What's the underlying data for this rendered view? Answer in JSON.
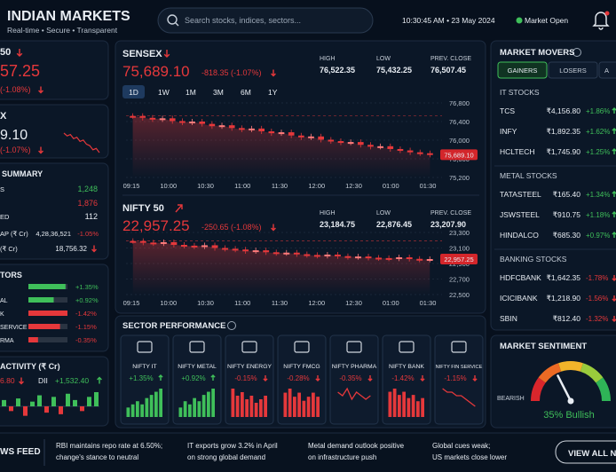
{
  "header": {
    "title": "INDIAN MARKETS",
    "tagline": "Real-time • Secure • Transparent",
    "search_placeholder": "Search stocks, indices, sectors...",
    "datetime": "10:30:45 AM • 23 May 2024",
    "status": "Market Open"
  },
  "left": {
    "card1": {
      "name": "50",
      "value": "57.25",
      "change": "(-1.08%)"
    },
    "card2": {
      "name": "X",
      "value": "9.10",
      "change": "(-1.07%)",
      "spark": [
        9,
        8,
        8.5,
        7,
        7.5,
        6,
        6.5,
        5,
        4.5,
        3,
        3.5,
        2
      ]
    },
    "summary": {
      "title": "SUMMARY",
      "rows": [
        {
          "label": "S",
          "value": "1,248"
        },
        {
          "value": "1,876"
        },
        {
          "label": "ED",
          "value": "112"
        },
        {
          "label": "AP (₹ Cr)",
          "value": "4,28,36,521",
          "change": "-1.05%"
        },
        {
          "label": "(₹ Cr)",
          "value": "18,756.32"
        }
      ]
    },
    "sectors": {
      "title": "TORS",
      "rows": [
        {
          "change": 1.35,
          "change_label": "+1.35%"
        },
        {
          "label": "AL",
          "change": 0.92,
          "change_label": "+0.92%"
        },
        {
          "label": "K",
          "change": -1.42,
          "change_label": "-1.42%"
        },
        {
          "label": "SERVICE",
          "change": -1.15,
          "change_label": "-1.15%"
        },
        {
          "label": "RMA",
          "change": -0.35,
          "change_label": "-0.35%"
        }
      ]
    },
    "activity": {
      "title": "ACTIVITY (₹ Cr)",
      "fii_value": "6.80",
      "dii_label": "DII",
      "dii_value": "+1,532.40",
      "bars": [
        4,
        -3,
        5,
        -6,
        3,
        7,
        -4,
        6,
        -5,
        8,
        4,
        -3,
        6,
        9
      ]
    }
  },
  "indices": [
    {
      "name": "SENSEX",
      "price": "75,689.10",
      "change": "-818.35 (-1.07%)",
      "stats": [
        {
          "label": "HIGH",
          "value": "76,522.35"
        },
        {
          "label": "LOW",
          "value": "75,432.25"
        },
        {
          "label": "PREV. CLOSE",
          "value": "76,507.45"
        }
      ],
      "tabs": [
        "1D",
        "1W",
        "1M",
        "3M",
        "6M",
        "1Y"
      ],
      "chart": {
        "type": "candlestick",
        "closes": [
          76520,
          76480,
          76450,
          76470,
          76410,
          76380,
          76400,
          76350,
          76300,
          76320,
          76260,
          76230,
          76250,
          76190,
          76150,
          76170,
          76100,
          76060,
          76080,
          76010,
          75980,
          75950,
          75960,
          75900,
          75860,
          75870,
          75810,
          75780,
          75740,
          75720,
          75689.1
        ],
        "ylim": [
          75200,
          76800
        ],
        "yticks": [
          {
            "value": 76800,
            "label": "76,800"
          },
          {
            "value": 76400,
            "label": "76,400"
          },
          {
            "value": 76000,
            "label": "76,000"
          },
          {
            "value": 75600,
            "label": "75,600"
          },
          {
            "value": 75200,
            "label": "75,200"
          }
        ],
        "x_labels": [
          "09:15",
          "10:00",
          "10:30",
          "11:00",
          "11:30",
          "12:00",
          "12:30",
          "01:00",
          "01:30"
        ],
        "last_label": "75,689.10"
      }
    },
    {
      "name": "NIFTY 50",
      "price": "22,957.25",
      "change": "-250.65 (-1.08%)",
      "stats": [
        {
          "label": "HIGH",
          "value": "23,184.75"
        },
        {
          "label": "LOW",
          "value": "22,876.45"
        },
        {
          "label": "PREV. CLOSE",
          "value": "23,207.90"
        }
      ],
      "chart": {
        "type": "candlestick",
        "closes": [
          23190,
          23170,
          23160,
          23175,
          23140,
          23130,
          23120,
          23135,
          23100,
          23090,
          23080,
          23060,
          23070,
          23045,
          23035,
          23040,
          23020,
          23010,
          23000,
          23015,
          22995,
          22985,
          22990,
          22975,
          22970,
          22965,
          22980,
          22960,
          22950,
          22957.25
        ],
        "ylim": [
          22500,
          23300
        ],
        "yticks": [
          {
            "value": 23300,
            "label": "23,300"
          },
          {
            "value": 23100,
            "label": "23,100"
          },
          {
            "value": 22900,
            "label": "22,900"
          },
          {
            "value": 22700,
            "label": "22,700"
          },
          {
            "value": 22500,
            "label": "22,500"
          }
        ],
        "x_labels": [
          "09:15",
          "10:00",
          "10:30",
          "11:00",
          "11:30",
          "12:00",
          "12:30",
          "01:00",
          "01:30"
        ],
        "last_label": "22,957.25"
      }
    }
  ],
  "sector_performance": {
    "title": "SECTOR PERFORMANCE",
    "tiles": [
      {
        "name": "NIFTY IT",
        "change": "+1.35%",
        "type": "bar",
        "values": [
          3,
          4,
          5,
          4,
          6,
          7,
          8,
          9
        ]
      },
      {
        "name": "NIFTY METAL",
        "change": "+0.92%",
        "type": "bar",
        "values": [
          3,
          5,
          4,
          6,
          5,
          7,
          8,
          9
        ]
      },
      {
        "name": "NIFTY ENERGY",
        "change": "-0.15%",
        "type": "bar",
        "values": [
          8,
          6,
          7,
          5,
          6,
          4,
          5,
          6
        ]
      },
      {
        "name": "NIFTY FMCG",
        "change": "-0.28%",
        "type": "bar",
        "values": [
          6,
          7,
          5,
          6,
          4,
          5,
          6,
          5
        ]
      },
      {
        "name": "NIFTY PHARMA",
        "change": "-0.35%",
        "type": "line",
        "values": [
          7,
          6,
          8,
          5,
          7,
          6,
          5,
          6
        ]
      },
      {
        "name": "NIFTY BANK",
        "change": "-1.42%",
        "type": "bar",
        "values": [
          8,
          9,
          7,
          8,
          6,
          7,
          5,
          6
        ]
      },
      {
        "name": "NIFTY FIN SERVICE",
        "change": "-1.15%",
        "type": "line",
        "values": [
          8,
          7,
          7,
          6,
          6,
          5,
          4,
          3
        ]
      }
    ]
  },
  "market_movers": {
    "title": "MARKET MOVERS",
    "tabs": [
      "GAINERS",
      "LOSERS",
      "A"
    ],
    "groups": [
      {
        "title": "IT STOCKS",
        "rows": [
          [
            "TCS",
            "₹4,156.80",
            "+1.86%"
          ],
          [
            "INFY",
            "₹1,892.35",
            "+1.62%"
          ],
          [
            "HCLTECH",
            "₹1,745.90",
            "+1.25%"
          ]
        ]
      },
      {
        "title": "METAL STOCKS",
        "rows": [
          [
            "TATASTEEL",
            "₹165.40",
            "+1.34%"
          ],
          [
            "JSWSTEEL",
            "₹910.75",
            "+1.18%"
          ],
          [
            "HINDALCO",
            "₹685.30",
            "+0.97%"
          ]
        ]
      },
      {
        "title": "BANKING STOCKS",
        "rows": [
          [
            "HDFCBANK",
            "₹1,642.35",
            "-1.78%"
          ],
          [
            "ICICIBANK",
            "₹1,218.90",
            "-1.56%"
          ],
          [
            "SBIN",
            "₹812.40",
            "-1.32%"
          ]
        ]
      }
    ]
  },
  "sentiment": {
    "title": "MARKET SENTIMENT",
    "left_label": "BEARISH",
    "bullish": 35,
    "bullish_label": "35% Bullish"
  },
  "news": {
    "title": "WS FEED",
    "button": "VIEW ALL NE",
    "items": [
      {
        "lines": [
          "RBI maintains repo rate at 6.50%;",
          "change's stance to neutral"
        ]
      },
      {
        "lines": [
          "IT exports grow 3.2% in April",
          "on strong global demand"
        ]
      },
      {
        "lines": [
          "Metal demand outlook positive",
          "on infrastructure push"
        ]
      },
      {
        "lines": [
          "Global cues weak;",
          "US markets close lower"
        ]
      }
    ]
  }
}
